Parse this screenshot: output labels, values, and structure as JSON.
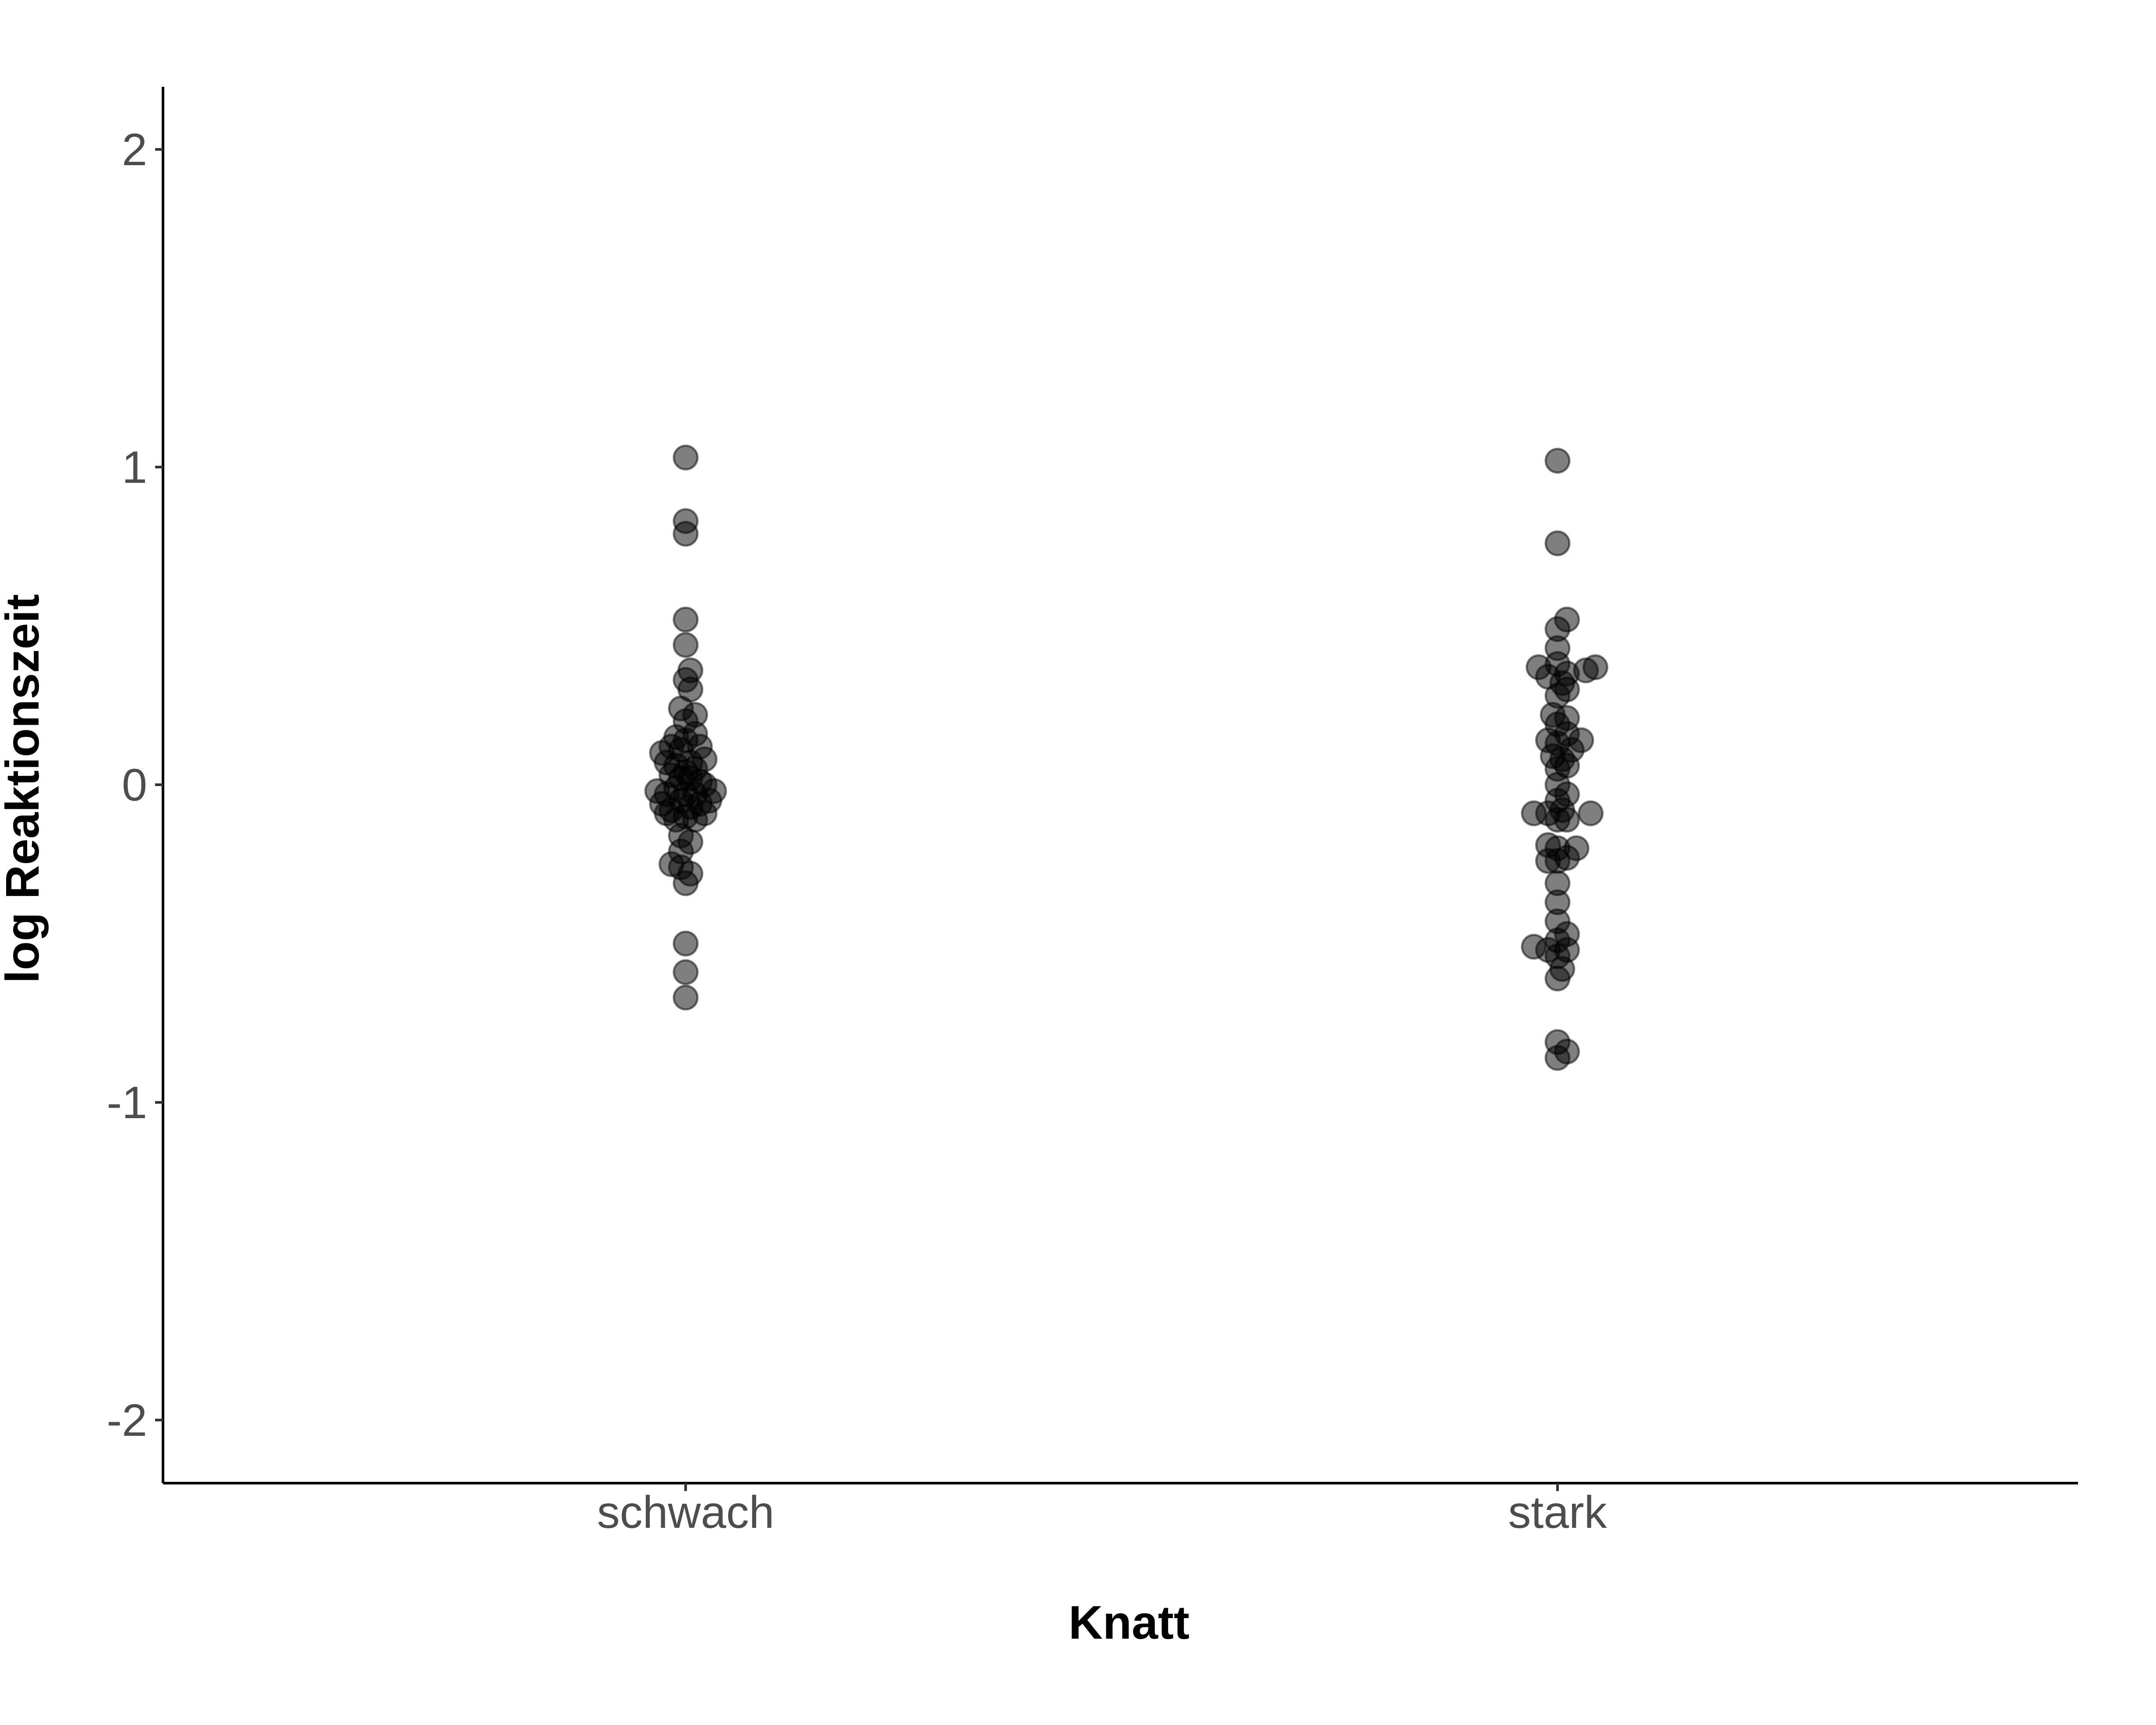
{
  "chart_data": {
    "type": "scatter",
    "style": "beeswarm",
    "title": "",
    "xlabel": "Knatt",
    "ylabel": "log Reaktionszeit",
    "ylim": [
      -2.2,
      2.2
    ],
    "yticks": [
      -2,
      -1,
      0,
      1,
      2
    ],
    "ytick_labels": [
      "-2",
      "-1",
      "0",
      "1",
      "2"
    ],
    "categories": [
      "schwach",
      "stark"
    ],
    "grid": false,
    "legend": "none",
    "point_color": "#000000",
    "point_opacity": 0.5,
    "points": [
      {
        "category": "schwach",
        "offset": 0,
        "y": 1.03
      },
      {
        "category": "schwach",
        "offset": 0,
        "y": 0.83
      },
      {
        "category": "schwach",
        "offset": 0,
        "y": 0.79
      },
      {
        "category": "schwach",
        "offset": 0,
        "y": 0.52
      },
      {
        "category": "schwach",
        "offset": 0,
        "y": 0.44
      },
      {
        "category": "schwach",
        "offset": 0.2,
        "y": 0.36
      },
      {
        "category": "schwach",
        "offset": 0,
        "y": 0.33
      },
      {
        "category": "schwach",
        "offset": 0.2,
        "y": 0.3
      },
      {
        "category": "schwach",
        "offset": -0.2,
        "y": 0.24
      },
      {
        "category": "schwach",
        "offset": 0.4,
        "y": 0.22
      },
      {
        "category": "schwach",
        "offset": 0,
        "y": 0.2
      },
      {
        "category": "schwach",
        "offset": 0.4,
        "y": 0.16
      },
      {
        "category": "schwach",
        "offset": -0.4,
        "y": 0.15
      },
      {
        "category": "schwach",
        "offset": 0,
        "y": 0.14
      },
      {
        "category": "schwach",
        "offset": -0.6,
        "y": 0.12
      },
      {
        "category": "schwach",
        "offset": 0.6,
        "y": 0.12
      },
      {
        "category": "schwach",
        "offset": -0.2,
        "y": 0.11
      },
      {
        "category": "schwach",
        "offset": -1.0,
        "y": 0.1
      },
      {
        "category": "schwach",
        "offset": 0.8,
        "y": 0.08
      },
      {
        "category": "schwach",
        "offset": -0.8,
        "y": 0.07
      },
      {
        "category": "schwach",
        "offset": 0.2,
        "y": 0.07
      },
      {
        "category": "schwach",
        "offset": -0.4,
        "y": 0.06
      },
      {
        "category": "schwach",
        "offset": 0.4,
        "y": 0.05
      },
      {
        "category": "schwach",
        "offset": 0,
        "y": 0.04
      },
      {
        "category": "schwach",
        "offset": -0.6,
        "y": 0.03
      },
      {
        "category": "schwach",
        "offset": -0.2,
        "y": 0.02
      },
      {
        "category": "schwach",
        "offset": 0.2,
        "y": 0.02
      },
      {
        "category": "schwach",
        "offset": 0.6,
        "y": 0.01
      },
      {
        "category": "schwach",
        "offset": 0.8,
        "y": 0
      },
      {
        "category": "schwach",
        "offset": -0.4,
        "y": -0.01
      },
      {
        "category": "schwach",
        "offset": -1.2,
        "y": -0.02
      },
      {
        "category": "schwach",
        "offset": 1.2,
        "y": -0.02
      },
      {
        "category": "schwach",
        "offset": -0.8,
        "y": -0.03
      },
      {
        "category": "schwach",
        "offset": 0,
        "y": -0.03
      },
      {
        "category": "schwach",
        "offset": 0.4,
        "y": -0.03
      },
      {
        "category": "schwach",
        "offset": -0.2,
        "y": -0.05
      },
      {
        "category": "schwach",
        "offset": 1.0,
        "y": -0.05
      },
      {
        "category": "schwach",
        "offset": -1.0,
        "y": -0.06
      },
      {
        "category": "schwach",
        "offset": 0.6,
        "y": -0.06
      },
      {
        "category": "schwach",
        "offset": 0.2,
        "y": -0.07
      },
      {
        "category": "schwach",
        "offset": -0.6,
        "y": -0.08
      },
      {
        "category": "schwach",
        "offset": -0.8,
        "y": -0.09
      },
      {
        "category": "schwach",
        "offset": 0.8,
        "y": -0.09
      },
      {
        "category": "schwach",
        "offset": 0,
        "y": -0.1
      },
      {
        "category": "schwach",
        "offset": -0.4,
        "y": -0.11
      },
      {
        "category": "schwach",
        "offset": 0.4,
        "y": -0.11
      },
      {
        "category": "schwach",
        "offset": -0.2,
        "y": -0.16
      },
      {
        "category": "schwach",
        "offset": 0.2,
        "y": -0.18
      },
      {
        "category": "schwach",
        "offset": -0.2,
        "y": -0.21
      },
      {
        "category": "schwach",
        "offset": -0.6,
        "y": -0.25
      },
      {
        "category": "schwach",
        "offset": -0.2,
        "y": -0.26
      },
      {
        "category": "schwach",
        "offset": 0.2,
        "y": -0.28
      },
      {
        "category": "schwach",
        "offset": 0,
        "y": -0.31
      },
      {
        "category": "schwach",
        "offset": 0,
        "y": -0.5
      },
      {
        "category": "schwach",
        "offset": 0,
        "y": -0.59
      },
      {
        "category": "schwach",
        "offset": 0,
        "y": -0.67
      },
      {
        "category": "stark",
        "offset": 0,
        "y": 1.02
      },
      {
        "category": "stark",
        "offset": 0,
        "y": 0.76
      },
      {
        "category": "stark",
        "offset": 0.4,
        "y": 0.52
      },
      {
        "category": "stark",
        "offset": 0,
        "y": 0.49
      },
      {
        "category": "stark",
        "offset": 0,
        "y": 0.43
      },
      {
        "category": "stark",
        "offset": 0,
        "y": 0.38
      },
      {
        "category": "stark",
        "offset": -0.8,
        "y": 0.37
      },
      {
        "category": "stark",
        "offset": 1.6,
        "y": 0.37
      },
      {
        "category": "stark",
        "offset": 1.2,
        "y": 0.36
      },
      {
        "category": "stark",
        "offset": 0.4,
        "y": 0.35
      },
      {
        "category": "stark",
        "offset": -0.4,
        "y": 0.34
      },
      {
        "category": "stark",
        "offset": 0.2,
        "y": 0.32
      },
      {
        "category": "stark",
        "offset": 0.4,
        "y": 0.3
      },
      {
        "category": "stark",
        "offset": 0,
        "y": 0.28
      },
      {
        "category": "stark",
        "offset": -0.2,
        "y": 0.22
      },
      {
        "category": "stark",
        "offset": 0.4,
        "y": 0.21
      },
      {
        "category": "stark",
        "offset": 0,
        "y": 0.19
      },
      {
        "category": "stark",
        "offset": 0.4,
        "y": 0.16
      },
      {
        "category": "stark",
        "offset": 1.0,
        "y": 0.14
      },
      {
        "category": "stark",
        "offset": -0.4,
        "y": 0.14
      },
      {
        "category": "stark",
        "offset": 0,
        "y": 0.13
      },
      {
        "category": "stark",
        "offset": 0.6,
        "y": 0.11
      },
      {
        "category": "stark",
        "offset": -0.2,
        "y": 0.09
      },
      {
        "category": "stark",
        "offset": 0.2,
        "y": 0.08
      },
      {
        "category": "stark",
        "offset": 0.4,
        "y": 0.06
      },
      {
        "category": "stark",
        "offset": 0,
        "y": 0.05
      },
      {
        "category": "stark",
        "offset": 0,
        "y": 0
      },
      {
        "category": "stark",
        "offset": 0.4,
        "y": -0.03
      },
      {
        "category": "stark",
        "offset": 0,
        "y": -0.05
      },
      {
        "category": "stark",
        "offset": -1.0,
        "y": -0.09
      },
      {
        "category": "stark",
        "offset": -0.4,
        "y": -0.09
      },
      {
        "category": "stark",
        "offset": 0.2,
        "y": -0.08
      },
      {
        "category": "stark",
        "offset": 1.4,
        "y": -0.09
      },
      {
        "category": "stark",
        "offset": 0,
        "y": -0.11
      },
      {
        "category": "stark",
        "offset": 0.4,
        "y": -0.11
      },
      {
        "category": "stark",
        "offset": -0.4,
        "y": -0.19
      },
      {
        "category": "stark",
        "offset": 0,
        "y": -0.2
      },
      {
        "category": "stark",
        "offset": 0.8,
        "y": -0.2
      },
      {
        "category": "stark",
        "offset": -0.4,
        "y": -0.24
      },
      {
        "category": "stark",
        "offset": 0,
        "y": -0.24
      },
      {
        "category": "stark",
        "offset": 0.4,
        "y": -0.23
      },
      {
        "category": "stark",
        "offset": 0,
        "y": -0.31
      },
      {
        "category": "stark",
        "offset": 0,
        "y": -0.37
      },
      {
        "category": "stark",
        "offset": 0,
        "y": -0.43
      },
      {
        "category": "stark",
        "offset": 0.4,
        "y": -0.47
      },
      {
        "category": "stark",
        "offset": 0,
        "y": -0.49
      },
      {
        "category": "stark",
        "offset": -1.0,
        "y": -0.51
      },
      {
        "category": "stark",
        "offset": -0.4,
        "y": -0.52
      },
      {
        "category": "stark",
        "offset": 0.4,
        "y": -0.52
      },
      {
        "category": "stark",
        "offset": 0,
        "y": -0.54
      },
      {
        "category": "stark",
        "offset": 0.2,
        "y": -0.58
      },
      {
        "category": "stark",
        "offset": 0,
        "y": -0.61
      },
      {
        "category": "stark",
        "offset": 0,
        "y": -0.81
      },
      {
        "category": "stark",
        "offset": 0.4,
        "y": -0.84
      },
      {
        "category": "stark",
        "offset": 0,
        "y": -0.86
      }
    ]
  }
}
